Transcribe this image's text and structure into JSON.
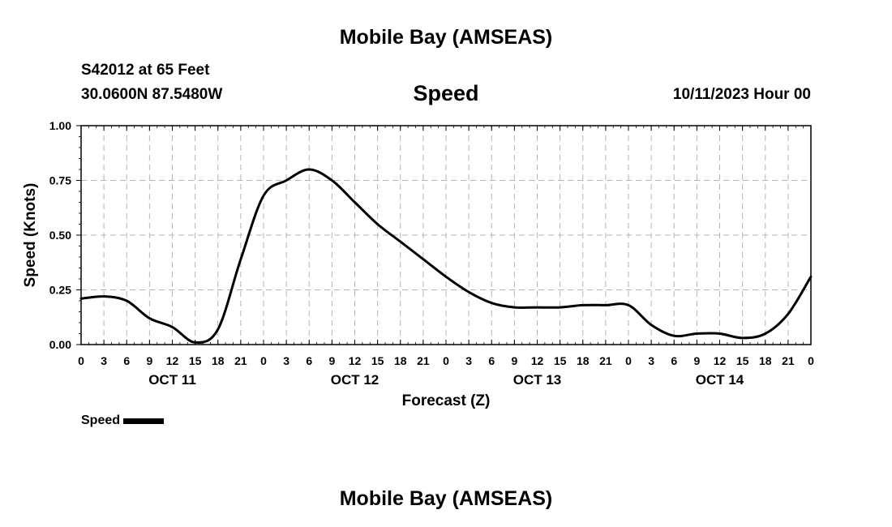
{
  "header": {
    "title": "Mobile Bay (AMSEAS)",
    "station": "S42012 at 65 Feet",
    "coordinates": "30.0600N  87.5480W",
    "variable": "Speed",
    "datetime": "10/11/2023 Hour 00"
  },
  "footer": {
    "title": "Mobile Bay (AMSEAS)"
  },
  "legend": {
    "label": "Speed",
    "color": "#000000"
  },
  "chart_data": {
    "type": "line",
    "xlabel": "Forecast (Z)",
    "ylabel": "Speed (Knots)",
    "ylim": [
      0,
      1
    ],
    "xlim": [
      0,
      96
    ],
    "y_ticks": [
      "0.00",
      "0.25",
      "0.50",
      "0.75",
      "1.00"
    ],
    "y_tick_values": [
      0,
      0.25,
      0.5,
      0.75,
      1.0
    ],
    "x_tick_hours": [
      0,
      3,
      6,
      9,
      12,
      15,
      18,
      21,
      24,
      27,
      30,
      33,
      36,
      39,
      42,
      45,
      48,
      51,
      54,
      57,
      60,
      63,
      66,
      69,
      72,
      75,
      78,
      81,
      84,
      87,
      90,
      93,
      96
    ],
    "x_tick_labels": [
      "0",
      "3",
      "6",
      "9",
      "12",
      "15",
      "18",
      "21",
      "0",
      "3",
      "6",
      "9",
      "12",
      "15",
      "18",
      "21",
      "0",
      "3",
      "6",
      "9",
      "12",
      "15",
      "18",
      "21",
      "0",
      "3",
      "6",
      "9",
      "12",
      "15",
      "18",
      "21",
      "0"
    ],
    "date_labels": [
      {
        "label": "OCT 11",
        "hour": 12
      },
      {
        "label": "OCT 12",
        "hour": 36
      },
      {
        "label": "OCT 13",
        "hour": 60
      },
      {
        "label": "OCT 14",
        "hour": 84
      }
    ],
    "grid": true,
    "series": [
      {
        "name": "Speed",
        "x": [
          0,
          3,
          6,
          9,
          12,
          15,
          18,
          21,
          24,
          27,
          30,
          33,
          36,
          39,
          42,
          45,
          48,
          51,
          54,
          57,
          60,
          63,
          66,
          69,
          72,
          75,
          78,
          81,
          84,
          87,
          90,
          93,
          96
        ],
        "values": [
          0.21,
          0.22,
          0.2,
          0.12,
          0.08,
          0.01,
          0.07,
          0.39,
          0.68,
          0.75,
          0.8,
          0.75,
          0.65,
          0.55,
          0.47,
          0.39,
          0.31,
          0.24,
          0.19,
          0.17,
          0.17,
          0.17,
          0.18,
          0.18,
          0.18,
          0.09,
          0.04,
          0.05,
          0.05,
          0.03,
          0.05,
          0.14,
          0.31
        ]
      }
    ]
  }
}
